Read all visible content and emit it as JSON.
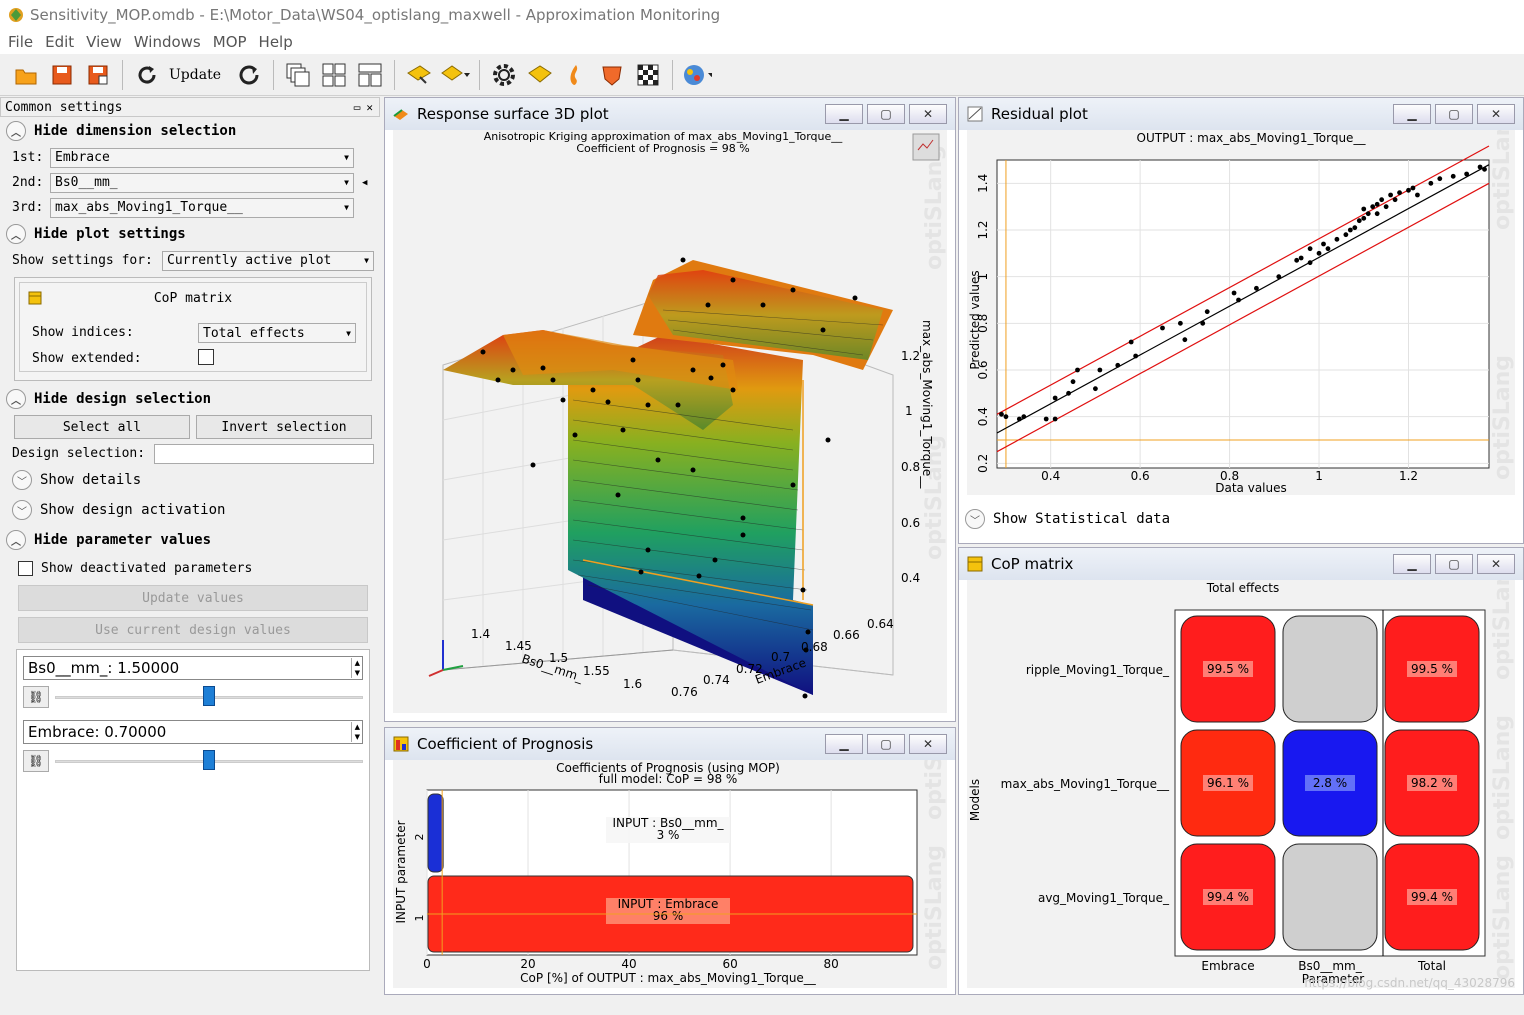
{
  "window": {
    "title": "Sensitivity_MOP.omdb - E:\\Motor_Data\\WS04_optislang_maxwell - Approximation Monitoring"
  },
  "menu": [
    "File",
    "Edit",
    "View",
    "Windows",
    "MOP",
    "Help"
  ],
  "toolbar": {
    "update_label": "Update"
  },
  "left_panel": {
    "header": "Common settings",
    "dimension_section": "Hide dimension selection",
    "dims": [
      {
        "label": "1st:",
        "value": "Embrace"
      },
      {
        "label": "2nd:",
        "value": "Bs0__mm_"
      },
      {
        "label": "3rd:",
        "value": "max_abs_Moving1_Torque__"
      }
    ],
    "plot_section": "Hide plot settings",
    "show_settings_label": "Show settings for:",
    "show_settings_value": "Currently active plot",
    "cop_box_title": "CoP matrix",
    "show_indices_label": "Show indices:",
    "show_indices_value": "Total effects",
    "show_extended_label": "Show extended:",
    "design_section": "Hide design selection",
    "select_all": "Select all",
    "invert_selection": "Invert selection",
    "design_selection_label": "Design selection:",
    "show_details": "Show details",
    "show_design_activation": "Show design activation",
    "param_section": "Hide parameter values",
    "show_deactivated": "Show deactivated parameters",
    "update_values": "Update values",
    "use_current": "Use current design values",
    "params": [
      {
        "text": "Bs0__mm_: 1.50000",
        "fraction": 0.5
      },
      {
        "text": "Embrace: 0.70000",
        "fraction": 0.5
      }
    ]
  },
  "rs3d": {
    "title": "Response surface 3D plot",
    "plot_title1": "Anisotropic Kriging  approximation of max_abs_Moving1_Torque__",
    "plot_title2": "Coefficient of Prognosis = 98 %",
    "z_label": "max_abs_Moving1_Torque__",
    "z_ticks": [
      "1.2",
      "1",
      "0.8",
      "0.6",
      "0.4"
    ],
    "bs_label": "Bs0__mm_",
    "bs_ticks": [
      "1.4",
      "1.45",
      "1.5",
      "1.55",
      "1.6"
    ],
    "emb_label": "Embrace",
    "emb_ticks": [
      "0.76",
      "0.74",
      "0.72",
      "0.7",
      "0.68",
      "0.66",
      "0.64"
    ],
    "watermark": "optiSLang"
  },
  "residual": {
    "title": "Residual plot",
    "plot_title": "OUTPUT : max_abs_Moving1_Torque__",
    "show_stat": "Show Statistical data",
    "chart_data": {
      "type": "scatter",
      "title": "OUTPUT : max_abs_Moving1_Torque__",
      "xlabel": "Data values",
      "ylabel": "Predicted values",
      "xlim": [
        0.28,
        1.38
      ],
      "ylim": [
        0.18,
        1.5
      ],
      "x_ticks": [
        0.4,
        0.6,
        0.8,
        1,
        1.2
      ],
      "y_ticks": [
        0.2,
        0.4,
        0.6,
        0.8,
        1,
        1.2,
        1.4
      ],
      "points": [
        [
          0.29,
          0.41
        ],
        [
          0.3,
          0.4
        ],
        [
          0.33,
          0.39
        ],
        [
          0.34,
          0.4
        ],
        [
          0.39,
          0.39
        ],
        [
          0.41,
          0.39
        ],
        [
          0.41,
          0.48
        ],
        [
          0.44,
          0.5
        ],
        [
          0.45,
          0.55
        ],
        [
          0.46,
          0.6
        ],
        [
          0.5,
          0.52
        ],
        [
          0.51,
          0.6
        ],
        [
          0.55,
          0.62
        ],
        [
          0.58,
          0.72
        ],
        [
          0.59,
          0.66
        ],
        [
          0.65,
          0.78
        ],
        [
          0.69,
          0.8
        ],
        [
          0.7,
          0.73
        ],
        [
          0.74,
          0.8
        ],
        [
          0.75,
          0.85
        ],
        [
          0.81,
          0.93
        ],
        [
          0.82,
          0.9
        ],
        [
          0.86,
          0.95
        ],
        [
          0.91,
          1.0
        ],
        [
          0.95,
          1.07
        ],
        [
          0.96,
          1.08
        ],
        [
          0.98,
          1.06
        ],
        [
          0.98,
          1.12
        ],
        [
          1.0,
          1.1
        ],
        [
          1.01,
          1.14
        ],
        [
          1.02,
          1.12
        ],
        [
          1.04,
          1.16
        ],
        [
          1.06,
          1.18
        ],
        [
          1.07,
          1.2
        ],
        [
          1.08,
          1.21
        ],
        [
          1.09,
          1.24
        ],
        [
          1.1,
          1.25
        ],
        [
          1.1,
          1.29
        ],
        [
          1.11,
          1.27
        ],
        [
          1.12,
          1.3
        ],
        [
          1.13,
          1.31
        ],
        [
          1.13,
          1.27
        ],
        [
          1.14,
          1.33
        ],
        [
          1.15,
          1.3
        ],
        [
          1.16,
          1.35
        ],
        [
          1.17,
          1.33
        ],
        [
          1.18,
          1.36
        ],
        [
          1.2,
          1.37
        ],
        [
          1.21,
          1.38
        ],
        [
          1.22,
          1.35
        ],
        [
          1.25,
          1.4
        ],
        [
          1.27,
          1.42
        ],
        [
          1.3,
          1.43
        ],
        [
          1.33,
          1.44
        ],
        [
          1.36,
          1.47
        ],
        [
          1.37,
          1.46
        ]
      ],
      "fit_line": [
        [
          0.28,
          0.33
        ],
        [
          1.38,
          1.48
        ]
      ],
      "bounds": [
        [
          [
            0.28,
            0.41
          ],
          [
            1.38,
            1.56
          ]
        ],
        [
          [
            0.28,
            0.25
          ],
          [
            1.38,
            1.4
          ]
        ]
      ]
    }
  },
  "cop": {
    "title": "Coefficient of Prognosis",
    "chart_data": {
      "type": "bar",
      "title": "Coefficients of Prognosis (using MOP)",
      "subtitle": "full model: CoP = 98 %",
      "xlabel": "CoP [%] of OUTPUT : max_abs_Moving1_Torque__",
      "ylabel": "INPUT parameter",
      "xlim": [
        0,
        97
      ],
      "x_ticks": [
        0,
        20,
        40,
        60,
        80
      ],
      "categories": [
        "2",
        "1"
      ],
      "bars": [
        {
          "name": "INPUT : Bs0__mm_",
          "value": 3,
          "label": "3 %",
          "color": "#1a2fd6"
        },
        {
          "name": "INPUT : Embrace",
          "value": 96,
          "label": "96 %",
          "color": "#ff2a1a"
        }
      ]
    }
  },
  "copmatrix": {
    "title": "CoP matrix",
    "chart_data": {
      "type": "heatmap",
      "title": "Total effects",
      "xlabel": "Parameter",
      "ylabel": "Models",
      "columns": [
        "Embrace",
        "Bs0__mm_",
        "Total"
      ],
      "rows": [
        "ripple_Moving1_Torque_",
        "max_abs_Moving1_Torque__",
        "avg_Moving1_Torque_"
      ],
      "cells": [
        [
          {
            "label": "99.5 %",
            "color": "#ff1d1d"
          },
          {
            "label": "",
            "color": "#cfcfcf"
          },
          {
            "label": "99.5 %",
            "color": "#ff1d1d"
          }
        ],
        [
          {
            "label": "96.1 %",
            "color": "#ff2a10"
          },
          {
            "label": "2.8 %",
            "color": "#1818f0"
          },
          {
            "label": "98.2 %",
            "color": "#ff1d1d"
          }
        ],
        [
          {
            "label": "99.4 %",
            "color": "#ff1d1d"
          },
          {
            "label": "",
            "color": "#cfcfcf"
          },
          {
            "label": "99.4 %",
            "color": "#ff1d1d"
          }
        ]
      ]
    }
  },
  "footer_watermark": "https://blog.csdn.net/qq_43028796"
}
